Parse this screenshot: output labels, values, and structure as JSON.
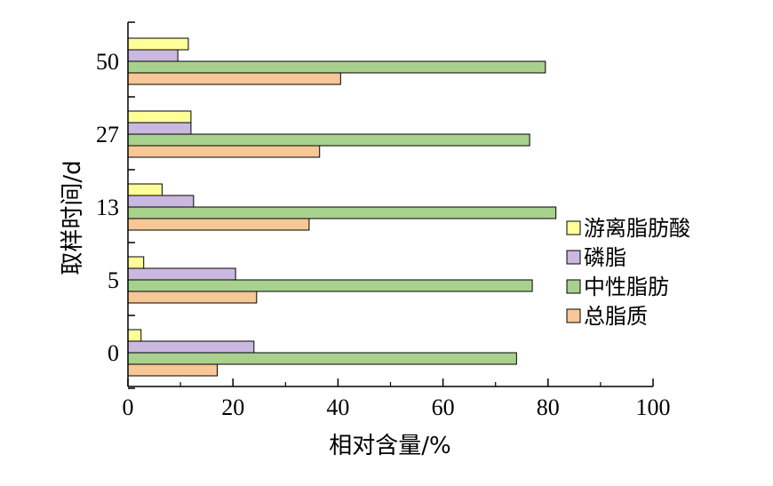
{
  "chart_data": {
    "type": "bar",
    "orientation": "horizontal",
    "categories": [
      "0",
      "5",
      "13",
      "27",
      "50"
    ],
    "series": [
      {
        "name": "游离脂肪酸",
        "color": "#ffff99",
        "values": [
          2.5,
          3.0,
          6.5,
          12.0,
          11.5
        ]
      },
      {
        "name": "磷脂",
        "color": "#cbb8e0",
        "values": [
          24.0,
          20.5,
          12.5,
          12.0,
          9.5
        ]
      },
      {
        "name": "中性脂肪",
        "color": "#a9d18e",
        "values": [
          74.0,
          77.0,
          81.5,
          76.5,
          79.5
        ]
      },
      {
        "name": "总脂质",
        "color": "#f8c796",
        "values": [
          17.0,
          24.5,
          34.5,
          36.5,
          40.5
        ]
      }
    ],
    "xlabel": "相对含量/%",
    "ylabel": "取样时间/d",
    "xlim": [
      0,
      100
    ],
    "xticks": [
      "0",
      "20",
      "40",
      "60",
      "80",
      "100"
    ],
    "grid": false,
    "legend_position": "right"
  }
}
